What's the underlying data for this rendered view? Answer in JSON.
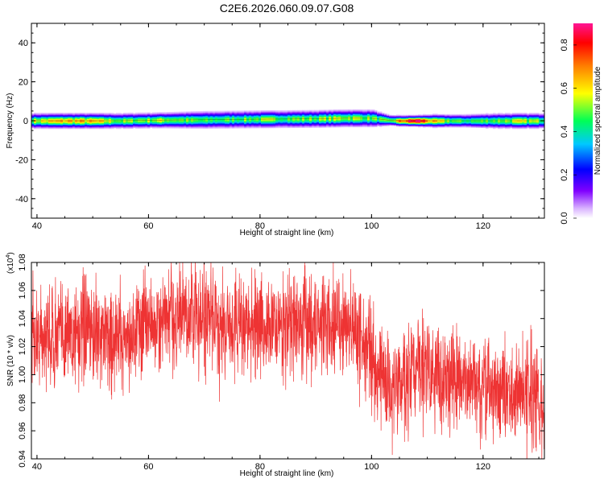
{
  "title": "C2E6.2026.060.09.07.G08",
  "chart_data": [
    {
      "type": "heatmap",
      "name": "spectrogram",
      "xlabel": "Height of straight line (km)",
      "ylabel": "Frequency (Hz)",
      "xlim": [
        39,
        131
      ],
      "ylim": [
        -50,
        50
      ],
      "xticks": [
        40,
        60,
        80,
        100,
        120
      ],
      "yticks": [
        40,
        20,
        0,
        -20,
        -40
      ],
      "band": [
        {
          "x": 39,
          "center": 0.0,
          "halfwidth": 3.5,
          "amp": 0.55
        },
        {
          "x": 45,
          "center": 0.0,
          "halfwidth": 3.5,
          "amp": 0.65
        },
        {
          "x": 50,
          "center": 0.0,
          "halfwidth": 3.5,
          "amp": 0.62
        },
        {
          "x": 55,
          "center": 0.0,
          "halfwidth": 3.5,
          "amp": 0.5
        },
        {
          "x": 62,
          "center": 0.3,
          "halfwidth": 3.5,
          "amp": 0.55
        },
        {
          "x": 70,
          "center": 0.5,
          "halfwidth": 4.0,
          "amp": 0.45
        },
        {
          "x": 80,
          "center": 0.8,
          "halfwidth": 4.0,
          "amp": 0.5
        },
        {
          "x": 90,
          "center": 1.0,
          "halfwidth": 4.0,
          "amp": 0.5
        },
        {
          "x": 95,
          "center": 1.3,
          "halfwidth": 4.0,
          "amp": 0.55
        },
        {
          "x": 100,
          "center": 1.3,
          "halfwidth": 4.0,
          "amp": 0.5
        },
        {
          "x": 103,
          "center": 0.3,
          "halfwidth": 2.5,
          "amp": 0.45
        },
        {
          "x": 105,
          "center": 0.0,
          "halfwidth": 2.5,
          "amp": 0.7
        },
        {
          "x": 108,
          "center": 0.0,
          "halfwidth": 2.5,
          "amp": 0.92
        },
        {
          "x": 111,
          "center": 0.0,
          "halfwidth": 3.0,
          "amp": 0.6
        },
        {
          "x": 116,
          "center": 0.0,
          "halfwidth": 3.0,
          "amp": 0.45
        },
        {
          "x": 122,
          "center": 0.0,
          "halfwidth": 3.5,
          "amp": 0.5
        },
        {
          "x": 126,
          "center": 0.0,
          "halfwidth": 3.5,
          "amp": 0.55
        },
        {
          "x": 131,
          "center": 0.0,
          "halfwidth": 3.5,
          "amp": 0.5
        }
      ]
    },
    {
      "type": "line",
      "name": "snr",
      "xlabel": "Height of straight line (km)",
      "ylabel": "SNR (10 * v/v)",
      "y_multiplier": "(x10",
      "y_multiplier_exp": "4",
      "y_multiplier_close": ")",
      "xlim": [
        39,
        131
      ],
      "ylim": [
        0.94,
        1.08
      ],
      "xticks": [
        40,
        60,
        80,
        100,
        120
      ],
      "yticks": [
        "1.08",
        "1.06",
        "1.04",
        "1.02",
        "1.00",
        "0.98",
        "0.96",
        "0.94"
      ],
      "trend": [
        [
          39,
          1.025
        ],
        [
          45,
          1.03
        ],
        [
          50,
          1.03
        ],
        [
          55,
          1.025
        ],
        [
          60,
          1.035
        ],
        [
          65,
          1.04
        ],
        [
          70,
          1.04
        ],
        [
          75,
          1.035
        ],
        [
          80,
          1.035
        ],
        [
          85,
          1.035
        ],
        [
          90,
          1.038
        ],
        [
          95,
          1.035
        ],
        [
          98,
          1.025
        ],
        [
          100,
          1.015
        ],
        [
          102,
          1.0
        ],
        [
          104,
          0.99
        ],
        [
          106,
          0.995
        ],
        [
          108,
          1.005
        ],
        [
          110,
          1.005
        ],
        [
          112,
          1.0
        ],
        [
          115,
          0.995
        ],
        [
          118,
          0.995
        ],
        [
          120,
          0.985
        ],
        [
          123,
          0.99
        ],
        [
          126,
          0.985
        ],
        [
          129,
          0.985
        ],
        [
          131,
          0.98
        ]
      ],
      "noise_amplitude": 0.018,
      "series_color": "#ee3333"
    }
  ],
  "colorbar": {
    "label": "Normalized spectral amplitude",
    "range": [
      0.0,
      0.9
    ],
    "ticks": [
      "0.0",
      "0.2",
      "0.4",
      "0.6",
      "0.8"
    ],
    "colors": [
      "#ffffff",
      "#b000ff",
      "#0000ff",
      "#00ddff",
      "#00ff44",
      "#ffff00",
      "#ff8800",
      "#ff0000",
      "#ff1493"
    ]
  }
}
